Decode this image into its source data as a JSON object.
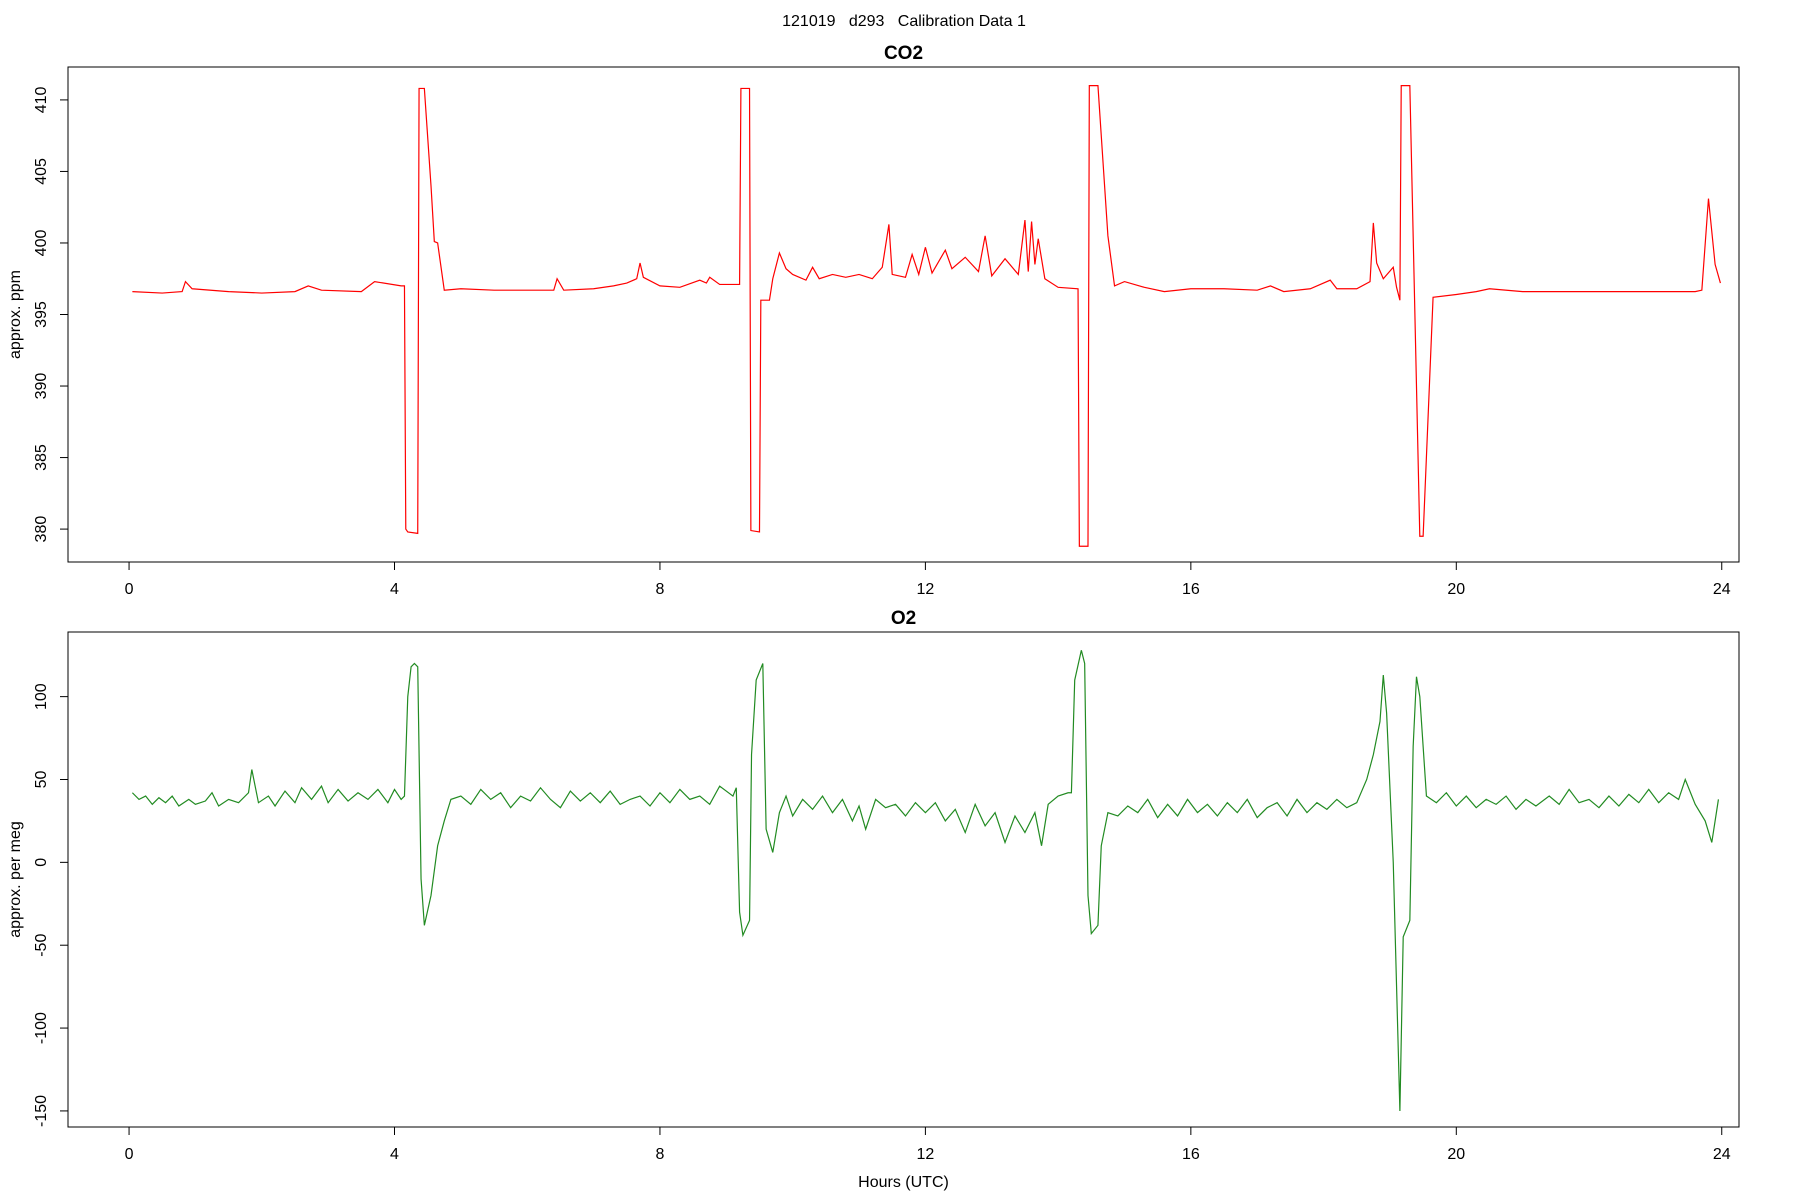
{
  "title": "121019   d293   Calibration Data 1",
  "chart_data": [
    {
      "type": "line",
      "title": "CO2",
      "ylabel": "approx. ppm",
      "x": [
        0.05,
        0.5,
        0.8,
        0.85,
        0.95,
        1.5,
        2,
        2.5,
        2.7,
        2.9,
        3.5,
        3.7,
        4.1,
        4.15,
        4.17,
        4.2,
        4.35,
        4.37,
        4.45,
        4.55,
        4.6,
        4.65,
        4.75,
        5,
        5.5,
        6,
        6.4,
        6.45,
        6.55,
        7,
        7.3,
        7.5,
        7.65,
        7.7,
        7.75,
        8,
        8.3,
        8.6,
        8.7,
        8.75,
        8.9,
        9.2,
        9.22,
        9.35,
        9.37,
        9.5,
        9.52,
        9.65,
        9.7,
        9.8,
        9.9,
        10,
        10.2,
        10.3,
        10.4,
        10.6,
        10.8,
        11,
        11.2,
        11.35,
        11.45,
        11.5,
        11.7,
        11.8,
        11.9,
        12,
        12.1,
        12.3,
        12.4,
        12.6,
        12.8,
        12.9,
        13,
        13.2,
        13.4,
        13.5,
        13.55,
        13.6,
        13.65,
        13.7,
        13.8,
        14,
        14.3,
        14.32,
        14.45,
        14.47,
        14.6,
        14.75,
        14.85,
        15,
        15.3,
        15.6,
        16,
        16.5,
        17,
        17.2,
        17.4,
        17.8,
        18.1,
        18.2,
        18.5,
        18.7,
        18.75,
        18.8,
        18.9,
        19.05,
        19.1,
        19.15,
        19.17,
        19.3,
        19.45,
        19.5,
        19.65,
        20,
        20.3,
        20.5,
        21,
        22,
        23,
        23.6,
        23.7,
        23.8,
        23.9,
        23.98
      ],
      "series": [
        {
          "name": "CO2",
          "color": "#ff0000",
          "values": [
            396.6,
            396.5,
            396.6,
            397.3,
            396.8,
            396.6,
            396.5,
            396.6,
            397,
            396.7,
            396.6,
            397.3,
            397,
            397,
            380,
            379.8,
            379.7,
            410.8,
            410.8,
            404,
            400.1,
            400,
            396.7,
            396.8,
            396.7,
            396.7,
            396.7,
            397.5,
            396.7,
            396.8,
            397,
            397.2,
            397.5,
            398.6,
            397.6,
            397,
            396.9,
            397.4,
            397.2,
            397.6,
            397.1,
            397.1,
            410.8,
            410.8,
            379.9,
            379.8,
            396,
            396,
            397.5,
            399.3,
            398.2,
            397.8,
            397.4,
            398.3,
            397.5,
            397.8,
            397.6,
            397.8,
            397.5,
            398.3,
            401.3,
            397.8,
            397.6,
            399.2,
            397.8,
            399.7,
            397.9,
            399.5,
            398.2,
            399,
            398,
            400.5,
            397.7,
            398.9,
            397.8,
            401.6,
            398,
            401.5,
            398.5,
            400.3,
            397.5,
            396.9,
            396.8,
            378.8,
            378.8,
            411,
            411,
            400.5,
            397,
            397.3,
            396.9,
            396.6,
            396.8,
            396.8,
            396.7,
            397,
            396.6,
            396.8,
            397.4,
            396.8,
            396.8,
            397.3,
            401.4,
            398.6,
            397.5,
            398.3,
            396.9,
            396,
            411,
            411,
            379.5,
            379.5,
            396.2,
            396.4,
            396.6,
            396.8,
            396.6,
            396.6,
            396.6,
            396.6,
            396.7,
            403.1,
            398.5,
            397.2
          ]
        }
      ],
      "xlim": [
        -0.92,
        24.26
      ],
      "ylim": [
        377.7,
        412.3
      ],
      "xticks": [
        0,
        4,
        8,
        12,
        16,
        20,
        24
      ],
      "yticks": [
        380,
        385,
        390,
        395,
        400,
        405,
        410
      ]
    },
    {
      "type": "line",
      "title": "O2",
      "ylabel": "approx. per meg",
      "xlabel": "Hours (UTC)",
      "x": [
        0.05,
        0.15,
        0.25,
        0.35,
        0.45,
        0.55,
        0.65,
        0.75,
        0.9,
        1.0,
        1.15,
        1.25,
        1.35,
        1.5,
        1.65,
        1.8,
        1.85,
        1.95,
        2.1,
        2.2,
        2.35,
        2.5,
        2.6,
        2.75,
        2.9,
        3.0,
        3.15,
        3.3,
        3.45,
        3.6,
        3.75,
        3.9,
        4.0,
        4.1,
        4.15,
        4.2,
        4.25,
        4.3,
        4.35,
        4.4,
        4.45,
        4.55,
        4.65,
        4.75,
        4.85,
        5.0,
        5.15,
        5.3,
        5.45,
        5.6,
        5.75,
        5.9,
        6.05,
        6.2,
        6.35,
        6.5,
        6.65,
        6.8,
        6.95,
        7.1,
        7.25,
        7.4,
        7.55,
        7.7,
        7.85,
        8.0,
        8.15,
        8.3,
        8.45,
        8.6,
        8.75,
        8.9,
        9.1,
        9.15,
        9.2,
        9.25,
        9.35,
        9.38,
        9.45,
        9.55,
        9.6,
        9.7,
        9.8,
        9.9,
        10.0,
        10.15,
        10.3,
        10.45,
        10.6,
        10.75,
        10.9,
        11.0,
        11.1,
        11.25,
        11.4,
        11.55,
        11.7,
        11.85,
        12.0,
        12.15,
        12.3,
        12.45,
        12.6,
        12.75,
        12.9,
        13.05,
        13.2,
        13.35,
        13.5,
        13.65,
        13.75,
        13.85,
        14.0,
        14.15,
        14.2,
        14.25,
        14.35,
        14.4,
        14.45,
        14.5,
        14.6,
        14.65,
        14.75,
        14.9,
        15.05,
        15.2,
        15.35,
        15.5,
        15.65,
        15.8,
        15.95,
        16.1,
        16.25,
        16.4,
        16.55,
        16.7,
        16.85,
        17.0,
        17.15,
        17.3,
        17.45,
        17.6,
        17.75,
        17.9,
        18.05,
        18.2,
        18.35,
        18.5,
        18.65,
        18.75,
        18.85,
        18.9,
        18.95,
        19.05,
        19.15,
        19.2,
        19.3,
        19.35,
        19.4,
        19.45,
        19.55,
        19.7,
        19.85,
        20.0,
        20.15,
        20.3,
        20.45,
        20.6,
        20.75,
        20.9,
        21.05,
        21.2,
        21.4,
        21.55,
        21.7,
        21.85,
        22.0,
        22.15,
        22.3,
        22.45,
        22.6,
        22.75,
        22.9,
        23.05,
        23.2,
        23.35,
        23.45,
        23.6,
        23.75,
        23.85,
        23.95
      ],
      "series": [
        {
          "name": "O2",
          "color": "#228b22",
          "values": [
            42,
            38,
            40,
            35,
            39,
            36,
            40,
            34,
            38,
            35,
            37,
            42,
            34,
            38,
            36,
            42,
            56,
            36,
            40,
            34,
            43,
            36,
            45,
            38,
            46,
            36,
            44,
            37,
            42,
            38,
            44,
            36,
            44,
            38,
            40,
            100,
            118,
            120,
            118,
            -10,
            -38,
            -20,
            10,
            25,
            38,
            40,
            35,
            44,
            38,
            42,
            33,
            40,
            37,
            45,
            38,
            33,
            43,
            37,
            42,
            36,
            43,
            35,
            38,
            40,
            34,
            42,
            36,
            44,
            38,
            40,
            35,
            46,
            40,
            45,
            -30,
            -44,
            -35,
            65,
            110,
            120,
            20,
            6,
            30,
            40,
            28,
            38,
            32,
            40,
            30,
            38,
            25,
            34,
            20,
            38,
            33,
            35,
            28,
            36,
            30,
            36,
            25,
            32,
            18,
            35,
            22,
            30,
            12,
            28,
            18,
            30,
            10,
            35,
            40,
            42,
            42,
            110,
            128,
            120,
            -20,
            -43,
            -38,
            10,
            30,
            28,
            34,
            30,
            38,
            27,
            35,
            28,
            38,
            30,
            35,
            28,
            36,
            30,
            38,
            27,
            33,
            36,
            28,
            38,
            30,
            36,
            32,
            38,
            33,
            36,
            50,
            65,
            85,
            113,
            90,
            0,
            -150,
            -45,
            -35,
            70,
            112,
            100,
            40,
            36,
            42,
            34,
            40,
            33,
            38,
            35,
            40,
            32,
            38,
            34,
            40,
            35,
            44,
            36,
            38,
            33,
            40,
            34,
            41,
            36,
            44,
            36,
            42,
            38,
            50,
            35,
            25,
            12,
            38
          ]
        }
      ],
      "xlim": [
        -0.92,
        24.26
      ],
      "ylim": [
        -159.7,
        139
      ],
      "xticks": [
        0,
        4,
        8,
        12,
        16,
        20,
        24
      ],
      "yticks": [
        -150,
        -100,
        -50,
        0,
        50,
        100
      ]
    }
  ]
}
